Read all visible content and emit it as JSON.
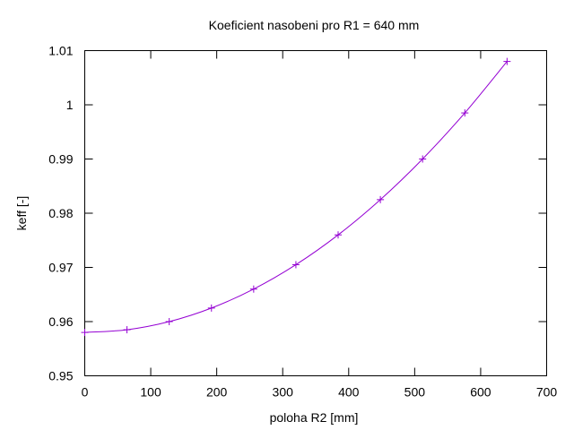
{
  "chart_data": {
    "type": "line",
    "title": "Koeficient nasobeni pro R1 = 640 mm",
    "xlabel": "poloha R2 [mm]",
    "ylabel": "keff [-]",
    "xlim": [
      0,
      700
    ],
    "ylim": [
      0.95,
      1.01
    ],
    "xticks": [
      0,
      100,
      200,
      300,
      400,
      500,
      600,
      700
    ],
    "yticks": [
      0.95,
      0.96,
      0.97,
      0.98,
      0.99,
      1,
      1.01
    ],
    "ytick_labels": [
      "0.95",
      "0.96",
      "0.97",
      "0.98",
      "0.99",
      "1",
      "1.01"
    ],
    "grid": false,
    "legend": "none",
    "series": [
      {
        "color": "#9400d3",
        "marker": "plus",
        "x": [
          0,
          64,
          128,
          192,
          256,
          320,
          384,
          448,
          512,
          576,
          640
        ],
        "y": [
          0.958,
          0.9585,
          0.96,
          0.9625,
          0.966,
          0.9705,
          0.976,
          0.9825,
          0.99,
          0.9985,
          1.008
        ]
      }
    ]
  }
}
